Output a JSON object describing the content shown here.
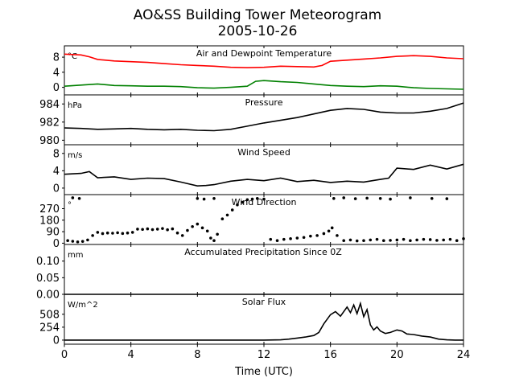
{
  "figure": {
    "title": "AO&SS Building Tower Meteorogram",
    "subtitle": "2005-10-26",
    "xlabel": "Time (UTC)"
  },
  "chart_data": [
    {
      "type": "line",
      "title": "Air and Dewpoint Temperature",
      "unit": "°C",
      "xlim": [
        0,
        24
      ],
      "ylim": [
        -2,
        11
      ],
      "yticks": [
        0,
        4,
        8
      ],
      "series": [
        {
          "color": "#ff0000",
          "x": [
            0,
            1,
            1.5,
            2,
            3,
            4,
            5,
            6,
            7,
            8,
            9,
            10,
            11,
            12,
            13,
            14,
            15,
            15.5,
            16,
            17,
            18,
            19,
            20,
            21,
            22,
            23,
            24
          ],
          "values": [
            8.8,
            8.6,
            8.1,
            7.4,
            7.0,
            6.8,
            6.6,
            6.3,
            6.0,
            5.8,
            5.6,
            5.3,
            5.2,
            5.3,
            5.6,
            5.5,
            5.4,
            5.8,
            6.9,
            7.2,
            7.5,
            7.8,
            8.2,
            8.4,
            8.2,
            7.8,
            7.6
          ]
        },
        {
          "color": "#008000",
          "x": [
            0,
            1,
            2,
            3,
            4,
            5,
            6,
            7,
            8,
            9,
            10,
            11,
            11.5,
            12,
            13,
            14,
            15,
            16,
            17,
            18,
            19,
            20,
            21,
            22,
            23,
            24
          ],
          "values": [
            0.3,
            0.6,
            0.9,
            0.5,
            0.4,
            0.3,
            0.3,
            0.2,
            -0.1,
            -0.2,
            0.0,
            0.3,
            1.6,
            1.8,
            1.5,
            1.3,
            0.9,
            0.5,
            0.3,
            0.2,
            0.4,
            0.3,
            -0.1,
            -0.3,
            -0.4,
            -0.5
          ]
        }
      ]
    },
    {
      "type": "line",
      "title": "Pressure",
      "unit": "hPa",
      "xlim": [
        0,
        24
      ],
      "ylim": [
        979.5,
        985
      ],
      "yticks": [
        980,
        982,
        984
      ],
      "series": [
        {
          "color": "#000000",
          "x": [
            0,
            1,
            2,
            3,
            4,
            5,
            6,
            7,
            8,
            9,
            10,
            11,
            12,
            13,
            14,
            15,
            16,
            17,
            18,
            19,
            20,
            21,
            22,
            23,
            24
          ],
          "values": [
            981.35,
            981.3,
            981.2,
            981.25,
            981.3,
            981.2,
            981.15,
            981.2,
            981.1,
            981.05,
            981.2,
            981.55,
            981.9,
            982.2,
            982.5,
            982.9,
            983.3,
            983.5,
            983.4,
            983.1,
            983.0,
            983.0,
            983.2,
            983.5,
            984.1
          ]
        }
      ]
    },
    {
      "type": "line",
      "title": "Wind Speed",
      "unit": "m/s",
      "xlim": [
        0,
        24
      ],
      "ylim": [
        -1.5,
        10
      ],
      "yticks": [
        0,
        4,
        8
      ],
      "series": [
        {
          "color": "#000000",
          "x": [
            0,
            1,
            1.5,
            2,
            3,
            4,
            5,
            6,
            7,
            8,
            8.5,
            9,
            10,
            11,
            12,
            13,
            14,
            15,
            16,
            17,
            18,
            19,
            19.5,
            20,
            21,
            22,
            23,
            24
          ],
          "values": [
            3.2,
            3.4,
            3.8,
            2.4,
            2.6,
            2.0,
            2.3,
            2.2,
            1.4,
            0.5,
            0.6,
            0.8,
            1.6,
            2.0,
            1.7,
            2.3,
            1.5,
            1.8,
            1.3,
            1.6,
            1.4,
            2.0,
            2.3,
            4.6,
            4.3,
            5.3,
            4.4,
            5.5
          ]
        }
      ]
    },
    {
      "type": "scatter",
      "title": "Wind Direction",
      "unit": "°",
      "xlim": [
        0,
        24
      ],
      "ylim": [
        -10,
        380
      ],
      "yticks": [
        0,
        90,
        180,
        270
      ],
      "series": [
        {
          "color": "#000000",
          "x": [
            0.2,
            0.5,
            0.8,
            1.1,
            1.4,
            1.7,
            2.0,
            2.3,
            2.6,
            2.9,
            3.2,
            3.5,
            3.8,
            4.1,
            4.4,
            4.7,
            5.0,
            5.3,
            5.6,
            5.9,
            6.2,
            6.5,
            6.8,
            7.1,
            7.4,
            7.7,
            8.0,
            8.3,
            8.6,
            8.8,
            9.0,
            9.2,
            9.5,
            9.8,
            10.1,
            10.4,
            10.7,
            11.0,
            11.3,
            11.6,
            12.0,
            12.4,
            12.8,
            13.2,
            13.6,
            14.0,
            14.4,
            14.8,
            15.2,
            15.6,
            15.9,
            16.1,
            16.4,
            16.8,
            17.2,
            17.6,
            18.0,
            18.4,
            18.8,
            19.2,
            19.6,
            20.0,
            20.4,
            20.8,
            21.2,
            21.6,
            22.0,
            22.4,
            22.8,
            23.2,
            23.6,
            24.0,
            0.5,
            0.9,
            8.0,
            8.4,
            9.0,
            16.2,
            16.8,
            17.5,
            18.2,
            19.0,
            19.6,
            20.8,
            22.1,
            23.0
          ],
          "values": [
            20,
            15,
            10,
            14,
            25,
            60,
            85,
            75,
            80,
            78,
            82,
            76,
            80,
            85,
            110,
            108,
            112,
            106,
            110,
            115,
            105,
            112,
            80,
            60,
            100,
            130,
            150,
            120,
            95,
            40,
            20,
            70,
            190,
            220,
            260,
            300,
            320,
            340,
            345,
            350,
            345,
            30,
            20,
            30,
            35,
            40,
            45,
            55,
            60,
            75,
            95,
            120,
            60,
            20,
            25,
            18,
            20,
            25,
            30,
            20,
            22,
            25,
            30,
            20,
            25,
            30,
            28,
            22,
            25,
            30,
            20,
            35,
            355,
            350,
            350,
            345,
            350,
            350,
            355,
            348,
            352,
            350,
            345,
            355,
            350,
            348
          ]
        }
      ]
    },
    {
      "type": "line",
      "title": "Accumulated Precipitation Since 0Z",
      "unit": "mm",
      "xlim": [
        0,
        24
      ],
      "ylim": [
        0,
        0.15
      ],
      "yticks": [
        0.0,
        0.05,
        0.1
      ],
      "series": [
        {
          "color": "#000000",
          "x": [
            0,
            24
          ],
          "values": [
            0,
            0
          ]
        }
      ]
    },
    {
      "type": "line",
      "title": "Solar Flux",
      "unit": "W/m^2",
      "xlim": [
        0,
        24
      ],
      "ylim": [
        -80,
        900
      ],
      "yticks": [
        0,
        254,
        508
      ],
      "series": [
        {
          "color": "#000000",
          "x": [
            0,
            12,
            13,
            13.5,
            14,
            14.5,
            15,
            15.3,
            15.6,
            16,
            16.3,
            16.6,
            17,
            17.2,
            17.4,
            17.6,
            17.8,
            18,
            18.2,
            18.4,
            18.6,
            18.8,
            19,
            19.3,
            19.6,
            20,
            20.3,
            20.6,
            21,
            21.5,
            22,
            22.5,
            23,
            23.5,
            24
          ],
          "values": [
            0,
            0,
            5,
            20,
            40,
            60,
            90,
            150,
            320,
            500,
            560,
            470,
            650,
            540,
            690,
            520,
            720,
            460,
            600,
            300,
            200,
            260,
            180,
            130,
            150,
            200,
            180,
            120,
            110,
            80,
            60,
            20,
            5,
            0,
            0
          ]
        }
      ]
    }
  ]
}
